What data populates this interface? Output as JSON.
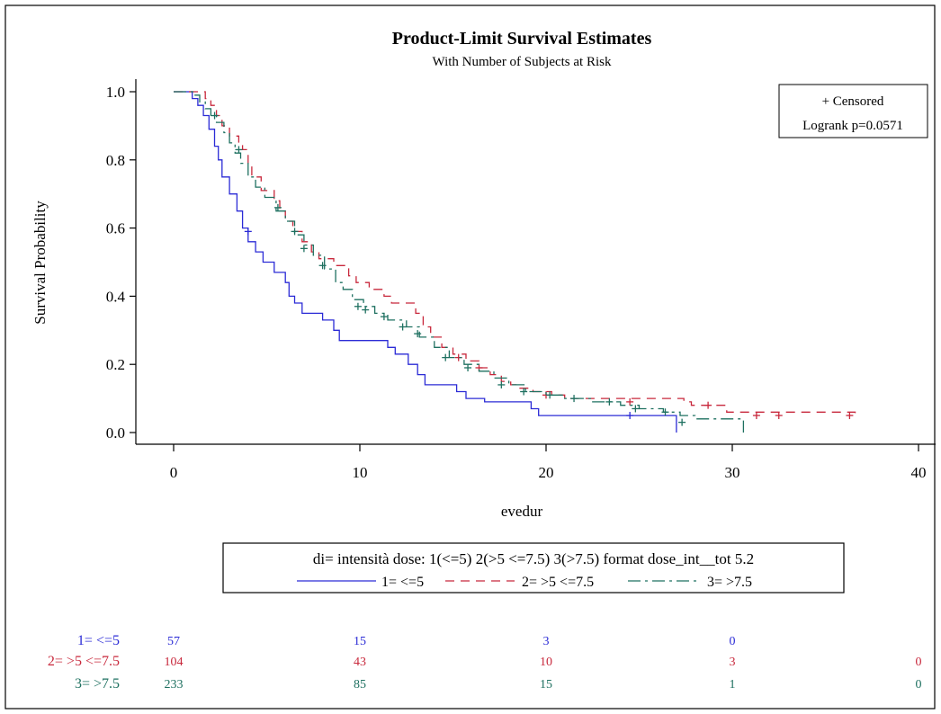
{
  "chart_data": {
    "type": "line",
    "title": "Product-Limit Survival Estimates",
    "subtitle": "With Number of Subjects at Risk",
    "xlabel": "evedur",
    "ylabel": "Survival Probability",
    "xlim": [
      0,
      40
    ],
    "ylim": [
      0,
      1
    ],
    "x_ticks": [
      0,
      10,
      20,
      30,
      40
    ],
    "y_ticks": [
      0.0,
      0.2,
      0.4,
      0.6,
      0.8,
      1.0
    ],
    "x_tick_labels": [
      "0",
      "10",
      "20",
      "30",
      "40"
    ],
    "y_tick_labels": [
      "0.0",
      "0.2",
      "0.4",
      "0.6",
      "0.8",
      "1.0"
    ],
    "grid": false,
    "inset_legend": {
      "censored_label": "+ Censored",
      "logrank_label": "Logrank p=0.0571",
      "placement": "top-right"
    },
    "legend": {
      "title": "di= intensità dose: 1(<=5) 2(>5 <=7.5) 3(>7.5) format dose_int__tot 5.2",
      "placement": "bottom"
    },
    "series": [
      {
        "name": "1= <=5",
        "color": "#2b2bd6",
        "dash": "solid",
        "points": [
          [
            0,
            1.0
          ],
          [
            0.8,
            1.0
          ],
          [
            1.0,
            0.98
          ],
          [
            1.3,
            0.96
          ],
          [
            1.6,
            0.93
          ],
          [
            1.9,
            0.89
          ],
          [
            2.2,
            0.84
          ],
          [
            2.4,
            0.8
          ],
          [
            2.6,
            0.75
          ],
          [
            3.0,
            0.7
          ],
          [
            3.4,
            0.65
          ],
          [
            3.7,
            0.6
          ],
          [
            4.0,
            0.56
          ],
          [
            4.4,
            0.53
          ],
          [
            4.8,
            0.5
          ],
          [
            5.4,
            0.47
          ],
          [
            6.0,
            0.44
          ],
          [
            6.2,
            0.4
          ],
          [
            6.5,
            0.38
          ],
          [
            6.9,
            0.35
          ],
          [
            8.0,
            0.33
          ],
          [
            8.6,
            0.3
          ],
          [
            8.9,
            0.27
          ],
          [
            11.5,
            0.25
          ],
          [
            11.9,
            0.23
          ],
          [
            12.6,
            0.2
          ],
          [
            13.1,
            0.17
          ],
          [
            13.5,
            0.14
          ],
          [
            15.2,
            0.12
          ],
          [
            15.7,
            0.1
          ],
          [
            16.7,
            0.09
          ],
          [
            19.2,
            0.07
          ],
          [
            19.6,
            0.05
          ],
          [
            24.4,
            0.05
          ],
          [
            26.9,
            0.05
          ],
          [
            27.0,
            0.0
          ]
        ],
        "censored": [
          [
            4.0,
            0.59
          ],
          [
            24.5,
            0.05
          ]
        ]
      },
      {
        "name": "2= >5 <=7.5",
        "color": "#c8283c",
        "dash": "10,7",
        "points": [
          [
            0,
            1.0
          ],
          [
            1.4,
            1.0
          ],
          [
            1.7,
            0.98
          ],
          [
            2.0,
            0.96
          ],
          [
            2.3,
            0.93
          ],
          [
            2.6,
            0.9
          ],
          [
            3.0,
            0.87
          ],
          [
            3.5,
            0.85
          ],
          [
            3.7,
            0.83
          ],
          [
            4.0,
            0.79
          ],
          [
            4.2,
            0.75
          ],
          [
            4.7,
            0.71
          ],
          [
            5.4,
            0.68
          ],
          [
            5.7,
            0.65
          ],
          [
            6.0,
            0.62
          ],
          [
            6.4,
            0.59
          ],
          [
            6.9,
            0.56
          ],
          [
            7.4,
            0.53
          ],
          [
            7.8,
            0.51
          ],
          [
            8.6,
            0.49
          ],
          [
            9.4,
            0.46
          ],
          [
            9.8,
            0.44
          ],
          [
            10.5,
            0.42
          ],
          [
            11.3,
            0.4
          ],
          [
            11.7,
            0.38
          ],
          [
            13.0,
            0.35
          ],
          [
            13.4,
            0.31
          ],
          [
            13.8,
            0.28
          ],
          [
            14.4,
            0.25
          ],
          [
            15.0,
            0.23
          ],
          [
            15.7,
            0.21
          ],
          [
            16.4,
            0.19
          ],
          [
            17.0,
            0.17
          ],
          [
            17.6,
            0.15
          ],
          [
            18.1,
            0.14
          ],
          [
            18.6,
            0.13
          ],
          [
            19.3,
            0.12
          ],
          [
            20.3,
            0.11
          ],
          [
            21.0,
            0.1
          ],
          [
            27.4,
            0.09
          ],
          [
            27.8,
            0.08
          ],
          [
            29.7,
            0.06
          ],
          [
            36.6,
            0.05
          ]
        ],
        "censored": [
          [
            15.3,
            0.22
          ],
          [
            16.4,
            0.19
          ],
          [
            20.0,
            0.11
          ],
          [
            24.5,
            0.09
          ],
          [
            28.7,
            0.08
          ],
          [
            31.3,
            0.05
          ],
          [
            32.5,
            0.05
          ],
          [
            36.3,
            0.05
          ]
        ]
      },
      {
        "name": "3= >7.5",
        "color": "#1e7060",
        "dash": "14,5,3,5",
        "points": [
          [
            0,
            1.0
          ],
          [
            0.9,
            1.0
          ],
          [
            1.1,
            0.99
          ],
          [
            1.4,
            0.97
          ],
          [
            1.7,
            0.95
          ],
          [
            2.0,
            0.93
          ],
          [
            2.3,
            0.91
          ],
          [
            2.7,
            0.88
          ],
          [
            3.0,
            0.85
          ],
          [
            3.3,
            0.82
          ],
          [
            3.6,
            0.79
          ],
          [
            4.0,
            0.75
          ],
          [
            4.4,
            0.72
          ],
          [
            4.9,
            0.69
          ],
          [
            5.5,
            0.65
          ],
          [
            6.0,
            0.62
          ],
          [
            6.5,
            0.58
          ],
          [
            7.0,
            0.55
          ],
          [
            7.5,
            0.52
          ],
          [
            8.1,
            0.48
          ],
          [
            8.7,
            0.44
          ],
          [
            9.1,
            0.42
          ],
          [
            9.6,
            0.39
          ],
          [
            10.2,
            0.37
          ],
          [
            10.8,
            0.35
          ],
          [
            11.5,
            0.33
          ],
          [
            12.5,
            0.31
          ],
          [
            13.2,
            0.28
          ],
          [
            14.0,
            0.25
          ],
          [
            14.8,
            0.22
          ],
          [
            15.6,
            0.2
          ],
          [
            16.4,
            0.18
          ],
          [
            17.2,
            0.16
          ],
          [
            18.0,
            0.14
          ],
          [
            18.9,
            0.12
          ],
          [
            20.0,
            0.11
          ],
          [
            21.0,
            0.1
          ],
          [
            22.5,
            0.09
          ],
          [
            24.0,
            0.08
          ],
          [
            25.0,
            0.07
          ],
          [
            26.3,
            0.06
          ],
          [
            27.2,
            0.05
          ],
          [
            28.0,
            0.04
          ],
          [
            30.6,
            0.0
          ]
        ],
        "censored": [
          [
            2.2,
            0.93
          ],
          [
            3.5,
            0.83
          ],
          [
            5.6,
            0.66
          ],
          [
            6.5,
            0.59
          ],
          [
            7.0,
            0.54
          ],
          [
            8.0,
            0.49
          ],
          [
            9.9,
            0.37
          ],
          [
            10.3,
            0.36
          ],
          [
            11.3,
            0.34
          ],
          [
            12.3,
            0.31
          ],
          [
            13.1,
            0.29
          ],
          [
            14.6,
            0.22
          ],
          [
            15.8,
            0.19
          ],
          [
            17.6,
            0.14
          ],
          [
            18.8,
            0.12
          ],
          [
            20.2,
            0.11
          ],
          [
            21.5,
            0.1
          ],
          [
            23.4,
            0.09
          ],
          [
            24.8,
            0.07
          ],
          [
            26.4,
            0.06
          ],
          [
            27.3,
            0.03
          ]
        ]
      }
    ],
    "at_risk": {
      "times": [
        0,
        10,
        20,
        30,
        40
      ],
      "rows": [
        {
          "label": "1= <=5",
          "values": [
            "57",
            "15",
            "3",
            "0",
            ""
          ]
        },
        {
          "label": "2= >5 <=7.5",
          "values": [
            "104",
            "43",
            "10",
            "3",
            "0"
          ]
        },
        {
          "label": "3= >7.5",
          "values": [
            "233",
            "85",
            "15",
            "1",
            "0"
          ]
        }
      ]
    }
  }
}
